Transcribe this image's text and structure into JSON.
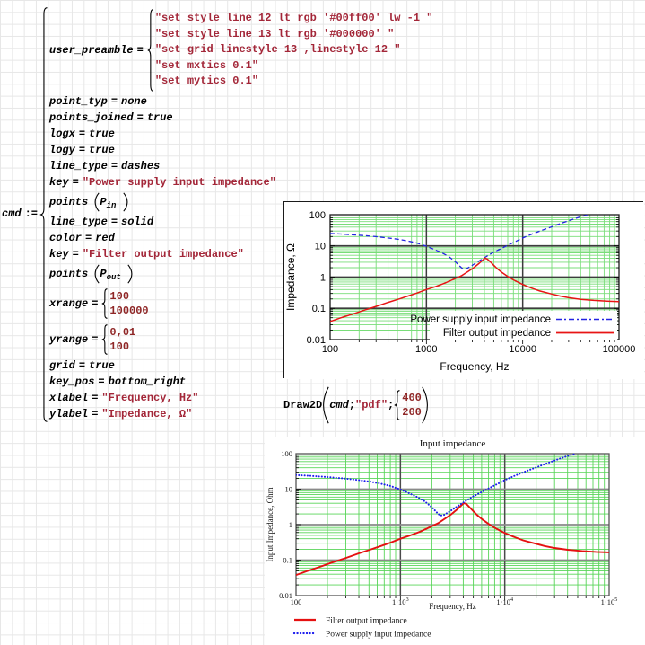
{
  "code": {
    "cmd_lhs": "cmd",
    "assign_op": ":=",
    "lines": [
      {
        "kind": "preamble",
        "lhs": "user_preamble",
        "op": "=",
        "items": [
          "\"set style line 12 lt rgb '#00ff00' lw -1 \"",
          "\"set style line 13 lt rgb '#000000' \"",
          "\"set grid linestyle 13 ,linestyle 12 \"",
          "\"set mxtics 0.1\"",
          "\"set mytics 0.1\""
        ]
      },
      {
        "kind": "plain",
        "lhs": "point_typ",
        "op": "=",
        "rhs": "none",
        "cls": "kw"
      },
      {
        "kind": "plain",
        "lhs": "points_joined",
        "op": "=",
        "rhs": "true",
        "cls": "kw"
      },
      {
        "kind": "plain",
        "lhs": "logx",
        "op": "=",
        "rhs": "true",
        "cls": "kw"
      },
      {
        "kind": "plain",
        "lhs": "logy",
        "op": "=",
        "rhs": "true",
        "cls": "kw"
      },
      {
        "kind": "plain",
        "lhs": "line_type",
        "op": "=",
        "rhs": "dashes",
        "cls": "kw"
      },
      {
        "kind": "plain",
        "lhs": "key",
        "op": "=",
        "rhs": "\"Power supply input impedance\"",
        "cls": "str"
      },
      {
        "kind": "points",
        "fn": "points",
        "var": "P",
        "sub": "in"
      },
      {
        "kind": "plain",
        "lhs": "line_type",
        "op": "=",
        "rhs": "solid",
        "cls": "kw"
      },
      {
        "kind": "plain",
        "lhs": "color",
        "op": "=",
        "rhs": "red",
        "cls": "kw"
      },
      {
        "kind": "plain",
        "lhs": "key",
        "op": "=",
        "rhs": "\"Filter output impedance\"",
        "cls": "str"
      },
      {
        "kind": "points",
        "fn": "points",
        "var": "P",
        "sub": "out"
      },
      {
        "kind": "stack",
        "lhs": "xrange",
        "op": "=",
        "items": [
          "100",
          "100000"
        ],
        "cls": "num"
      },
      {
        "kind": "stack",
        "lhs": "yrange",
        "op": "=",
        "items": [
          "0,01",
          "100"
        ],
        "cls": "num"
      },
      {
        "kind": "plain",
        "lhs": "grid",
        "op": "=",
        "rhs": "true",
        "cls": "kw"
      },
      {
        "kind": "plain",
        "lhs": "key_pos",
        "op": "=",
        "rhs": "bottom_right",
        "cls": "kw"
      },
      {
        "kind": "plain",
        "lhs": "xlabel",
        "op": "=",
        "rhs": "\"Frequency, Hz\"",
        "cls": "str"
      },
      {
        "kind": "plain",
        "lhs": "ylabel",
        "op": "=",
        "rhs": "\"Impedance, Ω\"",
        "cls": "str"
      }
    ]
  },
  "draw2d": {
    "fn": "Draw2D",
    "arg1": "cmd",
    "sep": ";",
    "arg2": "\"pdf\"",
    "size": [
      "400",
      "200"
    ]
  },
  "chart_data": [
    {
      "dom": "chart1",
      "type": "line",
      "title": "",
      "xlabel": "Frequency, Hz",
      "ylabel": "Impedance, Ω",
      "xscale": "log",
      "yscale": "log",
      "xlim": [
        100,
        100000
      ],
      "ylim": [
        0.01,
        100
      ],
      "grid": {
        "minor_color": "#79dd79",
        "major_v_color": "#3c3c3c",
        "major_h_color": "#3c3c3c",
        "frame_color": "#1a1a1a"
      },
      "legend_pos": "bottom_right",
      "legend_order": [
        0,
        1
      ],
      "xticks": [
        {
          "v": 100,
          "label": "100"
        },
        {
          "v": 1000,
          "label": "1000"
        },
        {
          "v": 10000,
          "label": "10000"
        },
        {
          "v": 100000,
          "label": "100000"
        }
      ],
      "yticks": [
        {
          "v": 100,
          "label": "100"
        },
        {
          "v": 10,
          "label": "10"
        },
        {
          "v": 1,
          "label": "1"
        },
        {
          "v": 0.1,
          "label": "0.1"
        },
        {
          "v": 0.01,
          "label": "0.01"
        }
      ],
      "series": [
        {
          "name": "Power supply input impedance",
          "color": "#2323e2",
          "style": "dashed",
          "width": 1.3,
          "points": [
            [
              100,
              25
            ],
            [
              130,
              24
            ],
            [
              170,
              22.8
            ],
            [
              220,
              21.5
            ],
            [
              300,
              19.8
            ],
            [
              400,
              18
            ],
            [
              520,
              16.2
            ],
            [
              650,
              14.3
            ],
            [
              800,
              12.3
            ],
            [
              1000,
              9.8
            ],
            [
              1200,
              7.8
            ],
            [
              1450,
              6.0
            ],
            [
              1700,
              4.6
            ],
            [
              2000,
              3.1
            ],
            [
              2200,
              2.3
            ],
            [
              2400,
              1.8
            ],
            [
              2600,
              1.85
            ],
            [
              2900,
              2.25
            ],
            [
              3300,
              2.9
            ],
            [
              3800,
              3.8
            ],
            [
              4300,
              4.8
            ],
            [
              5000,
              6.3
            ],
            [
              6000,
              8.3
            ],
            [
              7000,
              10.5
            ],
            [
              8500,
              14
            ],
            [
              10000,
              18
            ],
            [
              12500,
              24
            ],
            [
              16000,
              32
            ],
            [
              20000,
              41
            ],
            [
              26000,
              55
            ],
            [
              33000,
              71
            ],
            [
              41000,
              88
            ],
            [
              48000,
              100
            ]
          ]
        },
        {
          "name": "Filter output impedance",
          "color": "#e81414",
          "style": "solid",
          "width": 1.5,
          "points": [
            [
              100,
              0.038
            ],
            [
              130,
              0.05
            ],
            [
              170,
              0.065
            ],
            [
              220,
              0.085
            ],
            [
              300,
              0.115
            ],
            [
              400,
              0.155
            ],
            [
              520,
              0.2
            ],
            [
              650,
              0.25
            ],
            [
              800,
              0.31
            ],
            [
              1000,
              0.4
            ],
            [
              1250,
              0.5
            ],
            [
              1550,
              0.64
            ],
            [
              1900,
              0.84
            ],
            [
              2300,
              1.1
            ],
            [
              2700,
              1.5
            ],
            [
              3100,
              2.0
            ],
            [
              3500,
              2.7
            ],
            [
              3800,
              3.4
            ],
            [
              4050,
              4.05
            ],
            [
              4300,
              3.8
            ],
            [
              4600,
              3.1
            ],
            [
              5000,
              2.4
            ],
            [
              5500,
              1.8
            ],
            [
              6100,
              1.4
            ],
            [
              7000,
              1.05
            ],
            [
              8000,
              0.82
            ],
            [
              9000,
              0.68
            ],
            [
              10000,
              0.58
            ],
            [
              12000,
              0.46
            ],
            [
              15000,
              0.36
            ],
            [
              19000,
              0.3
            ],
            [
              24000,
              0.25
            ],
            [
              30000,
              0.22
            ],
            [
              40000,
              0.195
            ],
            [
              55000,
              0.18
            ],
            [
              75000,
              0.17
            ],
            [
              100000,
              0.165
            ]
          ]
        }
      ]
    },
    {
      "dom": "chart2",
      "type": "line",
      "title": "Input impedance",
      "xlabel": "Frequency, Hz",
      "ylabel": "Input Impedance, Ohm",
      "xscale": "log",
      "yscale": "log",
      "xlim": [
        100,
        100000
      ],
      "ylim": [
        0.01,
        100
      ],
      "grid": {
        "minor_color": "#58d558",
        "major_v_color": "#4a4a4a",
        "major_h_color": "#8a8a8a",
        "frame_color": "#555555"
      },
      "legend_pos": "below_left",
      "legend_order": [
        0,
        1
      ],
      "xticks": [
        {
          "v": 100,
          "label": "100"
        },
        {
          "v": 1000,
          "label": "1·10",
          "sup": "3"
        },
        {
          "v": 10000,
          "label": "1·10",
          "sup": "4"
        },
        {
          "v": 100000,
          "label": "1·10",
          "sup": "5"
        }
      ],
      "yticks": [
        {
          "v": 100,
          "label": "100"
        },
        {
          "v": 10,
          "label": "10"
        },
        {
          "v": 1,
          "label": "1"
        },
        {
          "v": 0.1,
          "label": "0.1"
        },
        {
          "v": 0.01,
          "label": "0.01"
        }
      ],
      "series": [
        {
          "name": "Filter output impedance",
          "color": "#e51111",
          "style": "solid",
          "width": 1.9,
          "same_as": 1
        },
        {
          "name": "Power supply input impedance",
          "color": "#1d1dee",
          "style": "dotted",
          "width": 2.0,
          "same_as": 0
        }
      ]
    }
  ]
}
